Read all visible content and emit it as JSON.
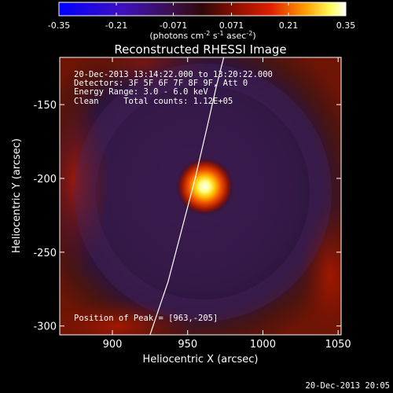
{
  "colorbar": {
    "min": -0.35,
    "max": 0.35,
    "ticks": [
      "-0.35",
      "-0.21",
      "-0.071",
      "0.071",
      "0.21",
      "0.35"
    ],
    "units_prefix": "(photons cm",
    "units_exp1": "-2",
    "units_mid1": " s",
    "units_exp2": "-1",
    "units_mid2": " asec",
    "units_exp3": "-2",
    "units_suffix": ")",
    "colormap": "rhessi-heat (blue-violet-red-yellow-white)"
  },
  "chart_data": {
    "type": "heatmap",
    "title": "Reconstructed RHESSI Image",
    "xlabel": "Heliocentric X (arcsec)",
    "ylabel": "Heliocentric Y (arcsec)",
    "xlim": [
      865,
      1052
    ],
    "ylim": [
      -306,
      -118
    ],
    "xticks": [
      "900",
      "950",
      "1000",
      "1050"
    ],
    "xtick_values": [
      900,
      950,
      1000,
      1050
    ],
    "yticks": [
      "-150",
      "-200",
      "-250",
      "-300"
    ],
    "ytick_values": [
      -150,
      -200,
      -250,
      -300
    ],
    "peak_position": [
      963,
      -205
    ],
    "peak_value": 0.35,
    "annotations": [
      "20-Dec-2013 13:14:22.000 to 13:20:22.000",
      "Detectors: 3F 5F 6F 7F 8F 9F, Att 0",
      "Energy Range: 3.0 - 6.0 keV",
      "Clean     Total counts: 1.12E+05"
    ],
    "peak_label": "Position of Peak = [963,-205]",
    "limb_curve": {
      "points": [
        [
          925,
          -306
        ],
        [
          937,
          -270
        ],
        [
          946,
          -235
        ],
        [
          955,
          -200
        ],
        [
          963,
          -165
        ],
        [
          969,
          -138
        ],
        [
          974,
          -118
        ]
      ]
    }
  },
  "footer_timestamp": "20-Dec-2013 20:05"
}
